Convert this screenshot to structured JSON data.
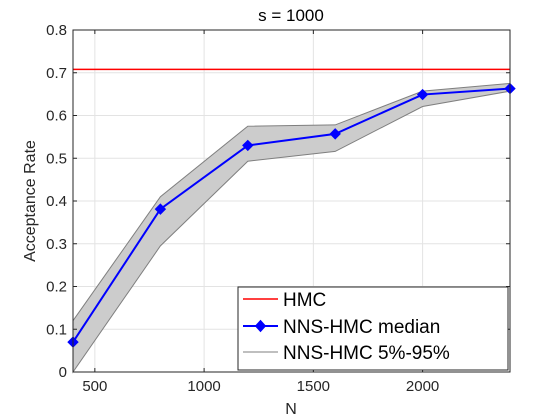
{
  "chart_data": {
    "type": "line",
    "title": "s = 1000",
    "xlabel": "N",
    "ylabel": "Acceptance Rate",
    "xlim": [
      400,
      2400
    ],
    "ylim": [
      0,
      0.8
    ],
    "xticks": [
      500,
      1000,
      1500,
      2000
    ],
    "xtick_labels": [
      "500",
      "1000",
      "1500",
      "2000"
    ],
    "yticks": [
      0,
      0.1,
      0.2,
      0.3,
      0.4,
      0.5,
      0.6,
      0.7,
      0.8
    ],
    "ytick_labels": [
      "0",
      "0.1",
      "0.2",
      "0.3",
      "0.4",
      "0.5",
      "0.6",
      "0.7",
      "0.8"
    ],
    "grid": true,
    "legend_position": "bottom-right",
    "x": [
      400,
      800,
      1200,
      1600,
      2000,
      2400
    ],
    "series": [
      {
        "name": "HMC",
        "kind": "hline",
        "y": 0.708,
        "color": "#ff0000"
      },
      {
        "name": "NNS-HMC median",
        "kind": "line-markers",
        "marker": "diamond",
        "values": [
          0.07,
          0.381,
          0.53,
          0.557,
          0.649,
          0.663
        ],
        "color": "#0000ff"
      },
      {
        "name": "NNS-HMC 5%-95%",
        "kind": "band",
        "lower": [
          0.0,
          0.295,
          0.493,
          0.516,
          0.621,
          0.657
        ],
        "upper": [
          0.12,
          0.41,
          0.575,
          0.578,
          0.657,
          0.675
        ],
        "fill": "#cccccc",
        "stroke": "#7f7f7f"
      }
    ]
  }
}
